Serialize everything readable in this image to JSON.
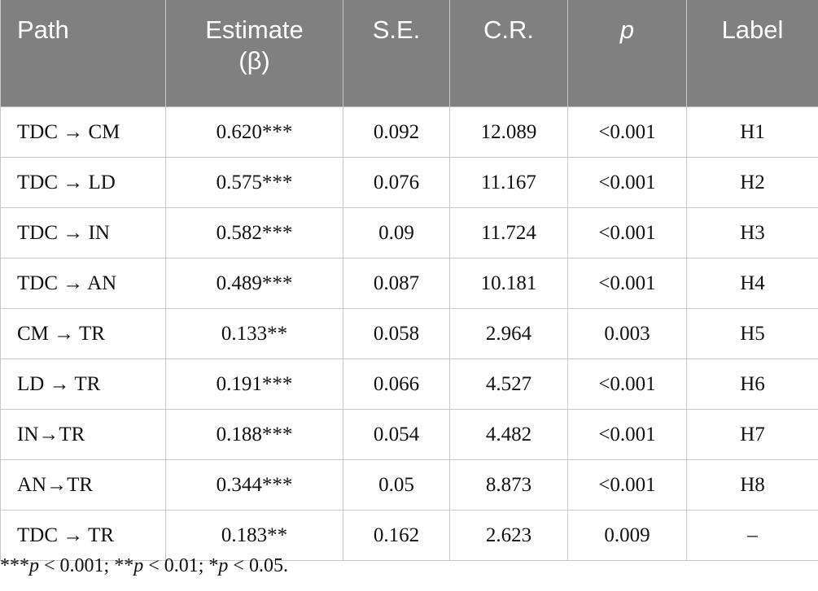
{
  "table": {
    "headers": [
      {
        "text": "Path"
      },
      {
        "text": "Estimate (β)"
      },
      {
        "text": "S.E."
      },
      {
        "text": "C.R."
      },
      {
        "text": "p",
        "italic": true
      },
      {
        "text": "Label"
      }
    ],
    "rows": [
      [
        "TDC → CM",
        "0.620***",
        "0.092",
        "12.089",
        "<0.001",
        "H1"
      ],
      [
        "TDC → LD",
        "0.575***",
        "0.076",
        "11.167",
        "<0.001",
        "H2"
      ],
      [
        "TDC → IN",
        "0.582***",
        "0.09",
        "11.724",
        "<0.001",
        "H3"
      ],
      [
        "TDC → AN",
        "0.489***",
        "0.087",
        "10.181",
        "<0.001",
        "H4"
      ],
      [
        "CM → TR",
        "0.133**",
        "0.058",
        "2.964",
        "0.003",
        "H5"
      ],
      [
        "LD → TR",
        "0.191***",
        "0.066",
        "4.527",
        "<0.001",
        "H6"
      ],
      [
        "IN→TR",
        "0.188***",
        "0.054",
        "4.482",
        "<0.001",
        "H7"
      ],
      [
        "AN→TR",
        "0.344***",
        "0.05",
        "8.873",
        "<0.001",
        "H8"
      ],
      [
        "TDC → TR",
        "0.183**",
        "0.162",
        "2.623",
        "0.009",
        "–"
      ]
    ]
  },
  "footnote": [
    {
      "text": "***"
    },
    {
      "text": "p",
      "italic": true
    },
    {
      "text": " < 0.001; **"
    },
    {
      "text": "p",
      "italic": true
    },
    {
      "text": " < 0.01; *"
    },
    {
      "text": "p",
      "italic": true
    },
    {
      "text": " < 0.05."
    }
  ]
}
